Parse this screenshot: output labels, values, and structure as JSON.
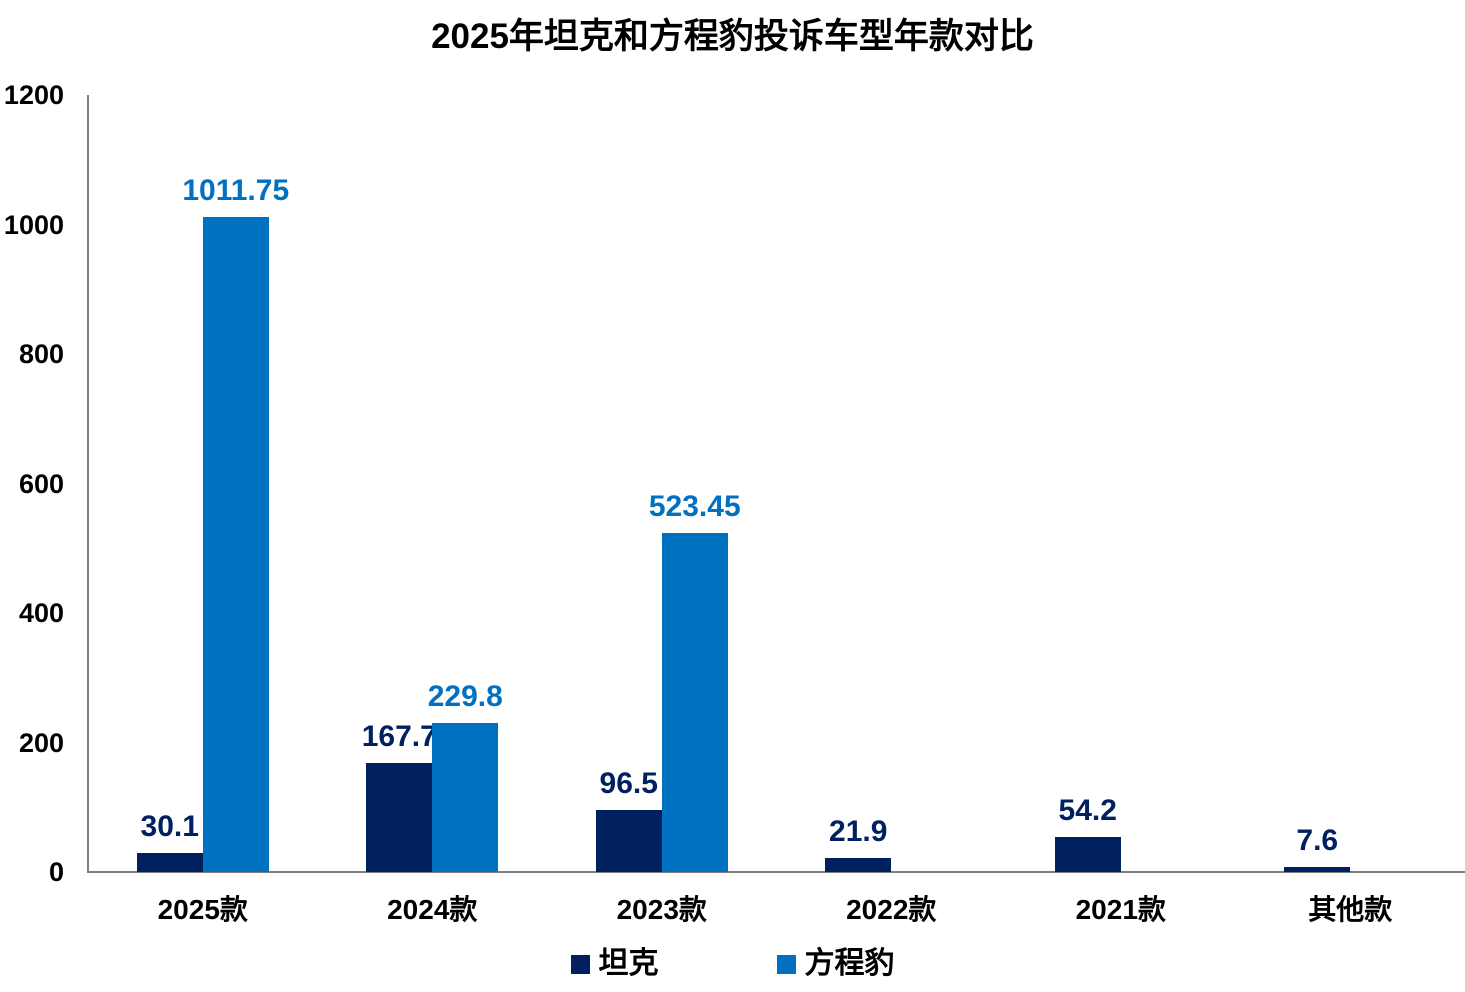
{
  "title": "2025年坦克和方程豹投诉车型年款对比",
  "colors": {
    "tank": "#002060",
    "fangchengbao": "#0070C0",
    "axis": "#808080",
    "text": "#000000",
    "background": "#FFFFFF"
  },
  "legend": {
    "items": [
      {
        "key": "tank",
        "label": "坦克",
        "color": "#002060"
      },
      {
        "key": "fangchengbao",
        "label": "方程豹",
        "color": "#0070C0"
      }
    ]
  },
  "chart_data": {
    "type": "bar",
    "title": "2025年坦克和方程豹投诉车型年款对比",
    "categories": [
      "2025款",
      "2024款",
      "2023款",
      "2022款",
      "2021款",
      "其他款"
    ],
    "series": [
      {
        "key": "tank",
        "name": "坦克",
        "color": "#002060",
        "values": [
          30.1,
          167.7,
          96.5,
          21.9,
          54.2,
          7.6
        ]
      },
      {
        "key": "fangchengbao",
        "name": "方程豹",
        "color": "#0070C0",
        "values": [
          1011.75,
          229.8,
          523.45,
          null,
          null,
          null
        ]
      }
    ],
    "xlabel": "",
    "ylabel": "",
    "ylim": [
      0,
      1200
    ],
    "yticks": [
      0,
      200,
      400,
      600,
      800,
      1000,
      1200
    ],
    "grid": false,
    "legend_position": "bottom",
    "data_labels": true
  }
}
